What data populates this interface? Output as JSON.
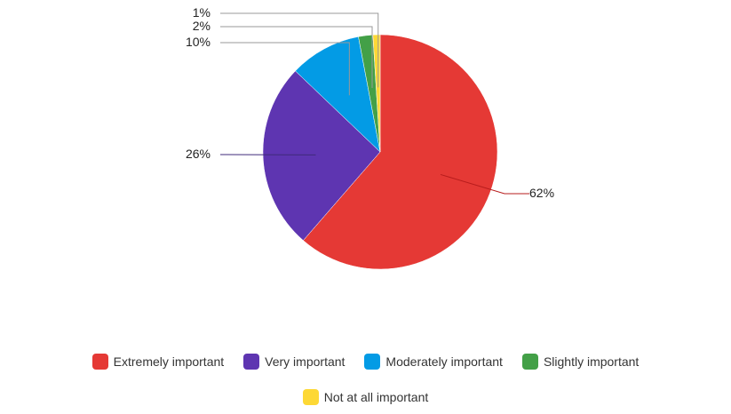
{
  "chart_data": {
    "type": "pie",
    "categories": [
      "Extremely important",
      "Very important",
      "Moderately important",
      "Slightly important",
      "Not at all important"
    ],
    "values": [
      62,
      26,
      10,
      2,
      1
    ],
    "labels": [
      "62%",
      "26%",
      "10%",
      "2%",
      "1%"
    ],
    "colors": [
      "#e53935",
      "#5e35b1",
      "#039be5",
      "#43a047",
      "#fdd835"
    ],
    "title": "",
    "legend_position": "bottom"
  }
}
